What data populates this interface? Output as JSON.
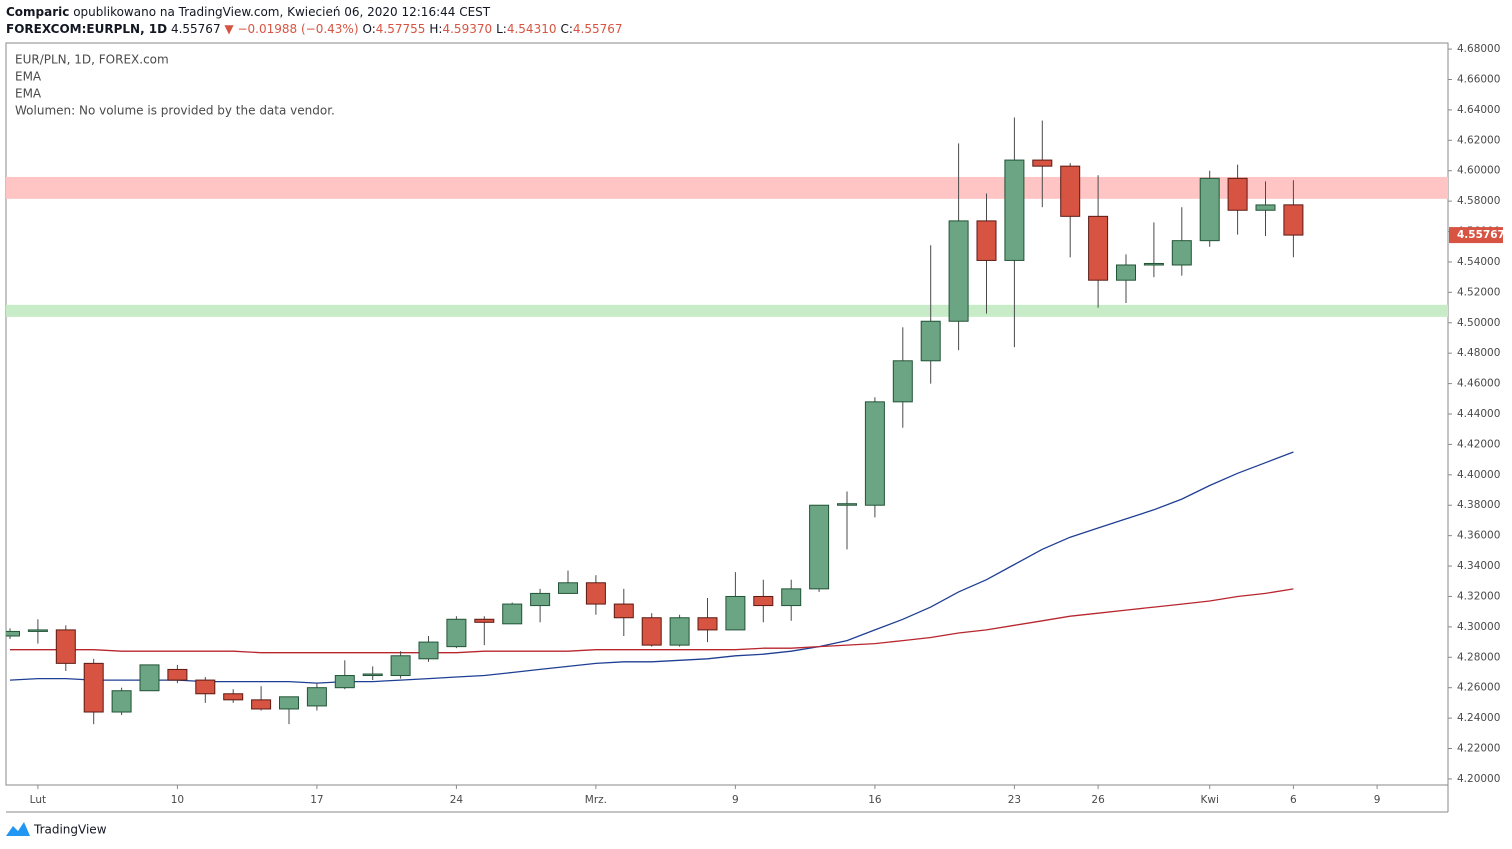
{
  "header": {
    "publisher": "Comparic",
    "published_text": "opublikowano na TradingView.com, Kwiecień 06, 2020 12:16:44 CEST",
    "symbol": "FOREXCOM:EURPLN, 1D",
    "last": "4.55767",
    "arrow": "▼",
    "change": "−0.01988 (−0.43%)",
    "ohlc": [
      {
        "label": "O:",
        "value": "4.57755"
      },
      {
        "label": "H:",
        "value": "4.59370"
      },
      {
        "label": "L:",
        "value": "4.54310"
      },
      {
        "label": "C:",
        "value": "4.55767"
      }
    ],
    "brand": "TradingView"
  },
  "chart_data": {
    "type": "candlestick",
    "title": "EUR/PLN, 1D, FOREX.com",
    "note": "Wolumen: No volume is provided by the data vendor.",
    "categories": [
      null,
      "Lut",
      null,
      null,
      null,
      null,
      "10",
      null,
      null,
      null,
      null,
      "17",
      null,
      null,
      null,
      null,
      "24",
      null,
      null,
      null,
      null,
      "Mrz.",
      null,
      null,
      null,
      null,
      "9",
      null,
      null,
      null,
      null,
      "16",
      null,
      null,
      null,
      null,
      "23",
      null,
      null,
      "26",
      null,
      null,
      null,
      "Kwi",
      null,
      null,
      "6",
      null,
      null,
      "9",
      null,
      null
    ],
    "open": [
      4.294,
      4.297,
      4.298,
      4.276,
      4.244,
      4.258,
      4.272,
      4.265,
      4.256,
      4.252,
      4.246,
      4.248,
      4.26,
      4.268,
      4.268,
      4.279,
      4.287,
      4.305,
      4.302,
      4.314,
      4.322,
      4.329,
      4.315,
      4.306,
      4.288,
      4.306,
      4.298,
      4.32,
      4.314,
      4.325,
      4.38,
      4.38,
      4.448,
      4.475,
      4.501,
      4.567,
      4.541,
      4.607,
      4.603,
      4.57,
      4.528,
      4.538,
      4.538,
      4.554,
      4.595,
      4.574,
      4.57755,
      null,
      null,
      null,
      null,
      null
    ],
    "high": [
      4.299,
      4.305,
      4.301,
      4.279,
      4.26,
      4.275,
      4.275,
      4.267,
      4.259,
      4.261,
      4.254,
      4.263,
      4.278,
      4.274,
      4.284,
      4.294,
      4.307,
      4.307,
      4.316,
      4.325,
      4.337,
      4.334,
      4.325,
      4.309,
      4.308,
      4.319,
      4.336,
      4.331,
      4.331,
      4.38,
      4.389,
      4.451,
      4.497,
      4.551,
      4.618,
      4.585,
      4.635,
      4.633,
      4.605,
      4.597,
      4.545,
      4.566,
      4.576,
      4.6,
      4.604,
      4.593,
      4.5937,
      null,
      null,
      null,
      null,
      null
    ],
    "low": [
      4.292,
      4.289,
      4.271,
      4.236,
      4.242,
      4.258,
      4.263,
      4.25,
      4.25,
      4.245,
      4.236,
      4.245,
      4.259,
      4.265,
      4.266,
      4.277,
      4.286,
      4.288,
      4.302,
      4.303,
      4.322,
      4.308,
      4.294,
      4.287,
      4.287,
      4.29,
      4.298,
      4.303,
      4.304,
      4.323,
      4.351,
      4.372,
      4.431,
      4.46,
      4.482,
      4.506,
      4.484,
      4.576,
      4.543,
      4.51,
      4.513,
      4.53,
      4.531,
      4.55,
      4.558,
      4.557,
      4.5431,
      null,
      null,
      null,
      null,
      null
    ],
    "close": [
      4.297,
      4.298,
      4.276,
      4.244,
      4.258,
      4.275,
      4.265,
      4.256,
      4.252,
      4.246,
      4.254,
      4.26,
      4.268,
      4.269,
      4.281,
      4.29,
      4.305,
      4.303,
      4.315,
      4.322,
      4.329,
      4.315,
      4.306,
      4.288,
      4.306,
      4.298,
      4.32,
      4.314,
      4.325,
      4.38,
      4.381,
      4.448,
      4.475,
      4.501,
      4.567,
      4.541,
      4.607,
      4.603,
      4.57,
      4.528,
      4.538,
      4.539,
      4.554,
      4.595,
      4.574,
      4.5775,
      4.55767,
      null,
      null,
      null,
      null,
      null
    ],
    "up_color": "#6ba583",
    "down_color": "#d75442",
    "series": [
      {
        "name": "EMA",
        "color": "#1f3f94",
        "values": [
          4.265,
          4.266,
          4.266,
          4.265,
          4.265,
          4.265,
          4.265,
          4.264,
          4.264,
          4.264,
          4.264,
          4.263,
          4.264,
          4.264,
          4.265,
          4.266,
          4.267,
          4.268,
          4.27,
          4.272,
          4.274,
          4.276,
          4.277,
          4.277,
          4.278,
          4.279,
          4.281,
          4.282,
          4.284,
          4.287,
          4.291,
          4.298,
          4.305,
          4.313,
          4.323,
          4.331,
          4.341,
          4.351,
          4.359,
          4.365,
          4.371,
          4.377,
          4.384,
          4.393,
          4.401,
          4.408,
          4.415,
          null,
          null,
          null,
          null,
          null
        ]
      },
      {
        "name": "EMA",
        "color": "#b8262e",
        "values": [
          4.285,
          4.285,
          4.285,
          4.285,
          4.284,
          4.284,
          4.284,
          4.284,
          4.284,
          4.283,
          4.283,
          4.283,
          4.283,
          4.283,
          4.283,
          4.283,
          4.283,
          4.284,
          4.284,
          4.284,
          4.284,
          4.285,
          4.285,
          4.285,
          4.285,
          4.285,
          4.285,
          4.286,
          4.286,
          4.287,
          4.288,
          4.289,
          4.291,
          4.293,
          4.296,
          4.298,
          4.301,
          4.304,
          4.307,
          4.309,
          4.311,
          4.313,
          4.315,
          4.317,
          4.32,
          4.322,
          4.325,
          null,
          null,
          null,
          null,
          null
        ]
      }
    ],
    "zones": [
      {
        "from": 4.5815,
        "to": 4.5959,
        "color": "#ffc5c5"
      },
      {
        "from": 4.5039,
        "to": 4.5118,
        "color": "#c8ecc8"
      }
    ],
    "last_price": {
      "value": 4.55767,
      "label": "4.55767"
    },
    "ylim": [
      4.196,
      4.684
    ],
    "yticks": [
      {
        "value": 4.2,
        "label": "4.20000"
      },
      {
        "value": 4.22,
        "label": "4.22000"
      },
      {
        "value": 4.24,
        "label": "4.24000"
      },
      {
        "value": 4.26,
        "label": "4.26000"
      },
      {
        "value": 4.28,
        "label": "4.28000"
      },
      {
        "value": 4.3,
        "label": "4.30000"
      },
      {
        "value": 4.32,
        "label": "4.32000"
      },
      {
        "value": 4.34,
        "label": "4.34000"
      },
      {
        "value": 4.36,
        "label": "4.36000"
      },
      {
        "value": 4.38,
        "label": "4.38000"
      },
      {
        "value": 4.4,
        "label": "4.40000"
      },
      {
        "value": 4.42,
        "label": "4.42000"
      },
      {
        "value": 4.44,
        "label": "4.44000"
      },
      {
        "value": 4.46,
        "label": "4.46000"
      },
      {
        "value": 4.48,
        "label": "4.48000"
      },
      {
        "value": 4.5,
        "label": "4.50000"
      },
      {
        "value": 4.52,
        "label": "4.52000"
      },
      {
        "value": 4.54,
        "label": "4.54000"
      },
      {
        "value": 4.56,
        "label": "4.56000"
      },
      {
        "value": 4.58,
        "label": "4.58000"
      },
      {
        "value": 4.6,
        "label": "4.60000"
      },
      {
        "value": 4.62,
        "label": "4.62000"
      },
      {
        "value": 4.64,
        "label": "4.64000"
      },
      {
        "value": 4.66,
        "label": "4.66000"
      },
      {
        "value": 4.68,
        "label": "4.68000"
      }
    ],
    "grid": false
  }
}
